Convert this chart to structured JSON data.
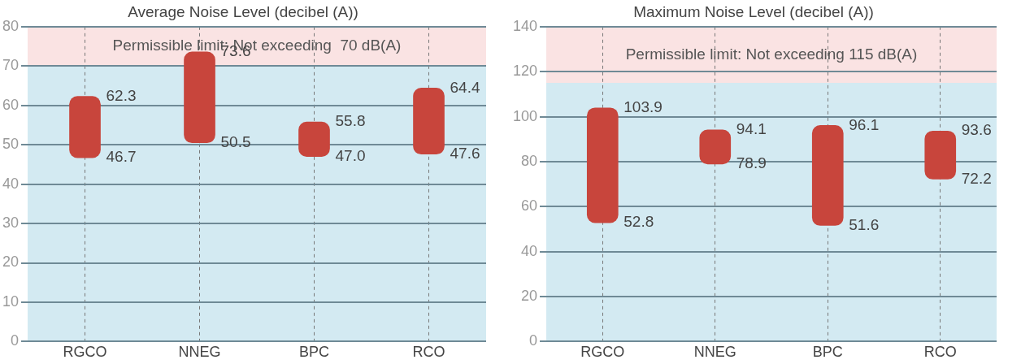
{
  "chart_data": [
    {
      "type": "bar",
      "title": "Average Noise Level (decibel (A))",
      "categories": [
        "RGCO",
        "NNEG",
        "BPC",
        "RCO"
      ],
      "base": [
        46.7,
        50.5,
        47.0,
        47.6
      ],
      "values": [
        15.6,
        23.1,
        8.8,
        16.8
      ],
      "color": "#c8453c",
      "ylim": [
        0,
        80
      ],
      "yticks": [
        0,
        10,
        20,
        30,
        40,
        50,
        60,
        70,
        80
      ],
      "grid": true,
      "bands": [
        {
          "axis": "y",
          "from": 70,
          "to": 80,
          "label": "Permissible limit: Not exceeding  70 dB(A)",
          "color": "#fae3e3"
        }
      ],
      "annotations": [
        {
          "text": "62.3",
          "x": "RGCO",
          "y": 62.3
        },
        {
          "text": "46.7",
          "x": "RGCO",
          "y": 46.7
        },
        {
          "text": "73.6",
          "x": "NNEG",
          "y": 73.6
        },
        {
          "text": "50.5",
          "x": "NNEG",
          "y": 50.5
        },
        {
          "text": "55.8",
          "x": "BPC",
          "y": 55.8
        },
        {
          "text": "47.0",
          "x": "BPC",
          "y": 47.0
        },
        {
          "text": "64.4",
          "x": "RCO",
          "y": 64.4
        },
        {
          "text": "47.6",
          "x": "RCO",
          "y": 47.6
        }
      ]
    },
    {
      "type": "bar",
      "title": "Maximum Noise Level (decibel (A))",
      "categories": [
        "RGCO",
        "NNEG",
        "BPC",
        "RCO"
      ],
      "base": [
        52.8,
        78.9,
        51.6,
        72.2
      ],
      "values": [
        51.1,
        15.2,
        44.5,
        21.4
      ],
      "color": "#c8453c",
      "ylim": [
        0,
        140
      ],
      "yticks": [
        0,
        20,
        40,
        60,
        80,
        100,
        120,
        140
      ],
      "grid": true,
      "bands": [
        {
          "axis": "y",
          "from": 115,
          "to": 140,
          "label": "Permissible limit: Not exceeding 115 dB(A)",
          "color": "#fae3e3"
        }
      ],
      "annotations": [
        {
          "text": "103.9",
          "x": "RGCO",
          "y": 103.9
        },
        {
          "text": "52.8",
          "x": "RGCO",
          "y": 52.8
        },
        {
          "text": "94.1",
          "x": "NNEG",
          "y": 94.1
        },
        {
          "text": "78.9",
          "x": "NNEG",
          "y": 78.9
        },
        {
          "text": "96.1",
          "x": "BPC",
          "y": 96.1
        },
        {
          "text": "51.6",
          "x": "BPC",
          "y": 51.6
        },
        {
          "text": "93.6",
          "x": "RCO",
          "y": 93.6
        },
        {
          "text": "72.2",
          "x": "RCO",
          "y": 72.2
        }
      ]
    }
  ]
}
